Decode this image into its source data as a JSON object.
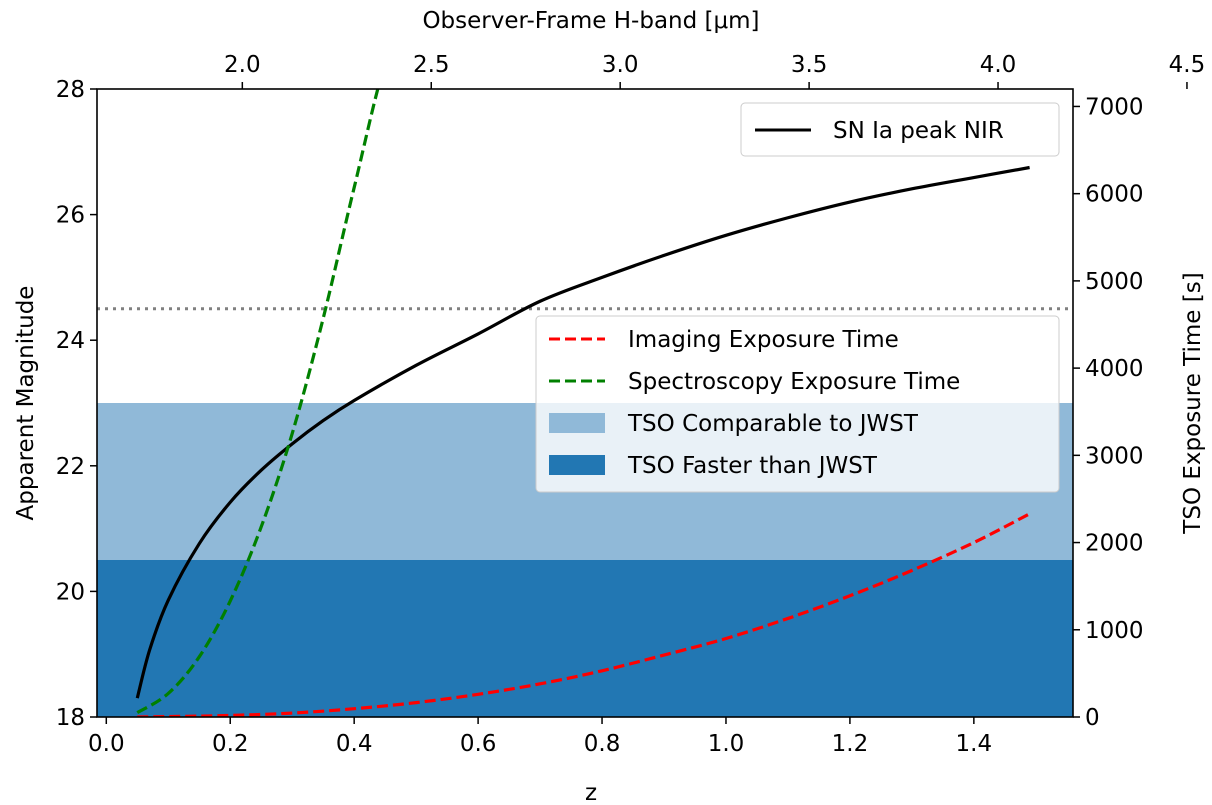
{
  "chart_data": {
    "type": "line",
    "title": "",
    "xlabel": "z",
    "ylabel": "Apparent Magnitude",
    "ylabel_right": "TSO Exposure Time [s]",
    "xlabel_top": "Observer-Frame H-band [μm]",
    "xlim": [
      -0.015,
      1.56
    ],
    "ylim": [
      18,
      28
    ],
    "ylim_right": [
      0,
      7200
    ],
    "xticks": [
      0.0,
      0.2,
      0.4,
      0.6,
      0.8,
      1.0,
      1.2,
      1.4
    ],
    "xtick_labels": [
      "0.0",
      "0.2",
      "0.4",
      "0.6",
      "0.8",
      "1.0",
      "1.2",
      "1.4"
    ],
    "yticks": [
      18,
      20,
      22,
      24,
      26,
      28
    ],
    "ytick_labels": [
      "18",
      "20",
      "22",
      "24",
      "26",
      "28"
    ],
    "yticks_right": [
      0,
      1000,
      2000,
      3000,
      4000,
      5000,
      6000,
      7000
    ],
    "ytick_labels_right": [
      "0",
      "1000",
      "2000",
      "3000",
      "4000",
      "5000",
      "6000",
      "7000"
    ],
    "top_ticks": [
      2.0,
      2.5,
      3.0,
      3.5,
      4.0,
      4.5
    ],
    "top_tick_labels": [
      "2.0",
      "2.5",
      "3.0",
      "3.5",
      "4.0",
      "4.5"
    ],
    "rest_wavelength_um": 1.64,
    "bands": [
      {
        "name": "TSO Faster than JWST",
        "y_range": [
          18,
          20.5
        ],
        "color": "#2277b3"
      },
      {
        "name": "TSO Comparable to JWST",
        "y_range": [
          20.5,
          23
        ],
        "color": "#90b9d8"
      }
    ],
    "hline": {
      "y": 24.5,
      "color": "#808080",
      "style": "dotted"
    },
    "series": [
      {
        "name": "SN Ia peak NIR",
        "axis": "left",
        "color": "#000000",
        "style": "solid",
        "x": [
          0.05,
          0.07,
          0.1,
          0.15,
          0.2,
          0.25,
          0.3,
          0.35,
          0.4,
          0.5,
          0.6,
          0.7,
          0.8,
          0.9,
          1.0,
          1.1,
          1.2,
          1.3,
          1.4,
          1.49
        ],
        "y": [
          18.3,
          19.07,
          19.86,
          20.76,
          21.42,
          21.93,
          22.35,
          22.72,
          23.04,
          23.6,
          24.1,
          24.62,
          25.0,
          25.35,
          25.67,
          25.95,
          26.2,
          26.41,
          26.59,
          26.75
        ]
      },
      {
        "name": "Imaging Exposure Time",
        "axis": "right",
        "color": "#ff0000",
        "style": "dashed",
        "x": [
          0.05,
          0.1,
          0.2,
          0.3,
          0.4,
          0.5,
          0.6,
          0.7,
          0.8,
          0.9,
          1.0,
          1.1,
          1.2,
          1.3,
          1.4,
          1.49
        ],
        "y": [
          0,
          5,
          18,
          45,
          95,
          165,
          260,
          380,
          530,
          710,
          900,
          1130,
          1390,
          1680,
          2000,
          2330
        ]
      },
      {
        "name": "Spectroscopy Exposure Time",
        "axis": "right",
        "color": "#008000",
        "style": "dashed",
        "x": [
          0.05,
          0.1,
          0.15,
          0.2,
          0.25,
          0.3,
          0.35,
          0.4,
          0.45,
          0.466
        ],
        "y": [
          50,
          270,
          690,
          1330,
          2180,
          3250,
          4570,
          6070,
          7480,
          7200
        ]
      }
    ],
    "legends": [
      {
        "position": "upper-right",
        "entries": [
          "SN Ia peak NIR"
        ]
      },
      {
        "position": "center-right",
        "entries": [
          "Imaging Exposure Time",
          "Spectroscopy Exposure Time",
          "TSO Comparable to JWST",
          "TSO Faster than JWST"
        ]
      }
    ]
  }
}
